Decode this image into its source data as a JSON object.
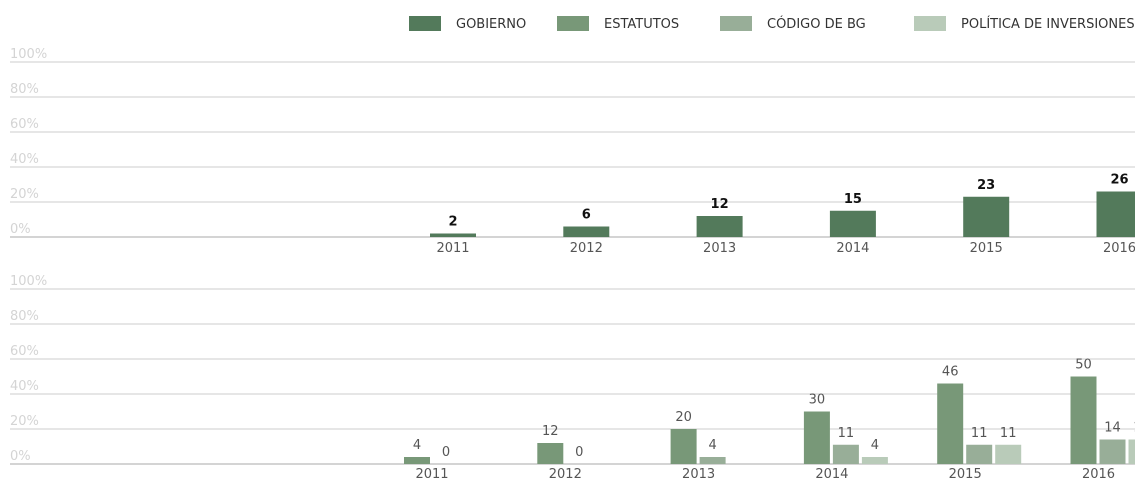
{
  "chart_data": [
    {
      "type": "bar",
      "categories": [
        "2011",
        "2012",
        "2013",
        "2014",
        "2015",
        "2016"
      ],
      "series": [
        {
          "name": "GOBIERNO",
          "color": "#537a5b",
          "values": [
            2,
            6,
            12,
            15,
            23,
            26
          ]
        }
      ],
      "ylim": [
        0,
        100
      ],
      "yticks": [
        {
          "value": 0,
          "label": "0%"
        },
        {
          "value": 20,
          "label": "20%"
        },
        {
          "value": 40,
          "label": "40%"
        },
        {
          "value": 60,
          "label": "60%"
        },
        {
          "value": 80,
          "label": "80%"
        },
        {
          "value": 100,
          "label": "100%"
        }
      ],
      "grid": true
    },
    {
      "type": "bar",
      "categories": [
        "2011",
        "2012",
        "2013",
        "2014",
        "2015",
        "2016"
      ],
      "series": [
        {
          "name": "ESTATUTOS",
          "color": "#789878",
          "values": [
            4,
            12,
            20,
            30,
            46,
            50
          ]
        },
        {
          "name": "CÓDIGO DE BG",
          "color": "#98ae98",
          "values": [
            0,
            0,
            4,
            11,
            11,
            14
          ]
        },
        {
          "name": "POLÍTICA DE INVERSIONES",
          "color": "#b9cbb9",
          "values": [
            null,
            null,
            null,
            4,
            11,
            14
          ]
        }
      ],
      "ylim": [
        0,
        100
      ],
      "yticks": [
        {
          "value": 0,
          "label": "0%"
        },
        {
          "value": 20,
          "label": "20%"
        },
        {
          "value": 40,
          "label": "40%"
        },
        {
          "value": 60,
          "label": "60%"
        },
        {
          "value": 80,
          "label": "80%"
        },
        {
          "value": 100,
          "label": "100%"
        }
      ],
      "grid": true
    }
  ]
}
